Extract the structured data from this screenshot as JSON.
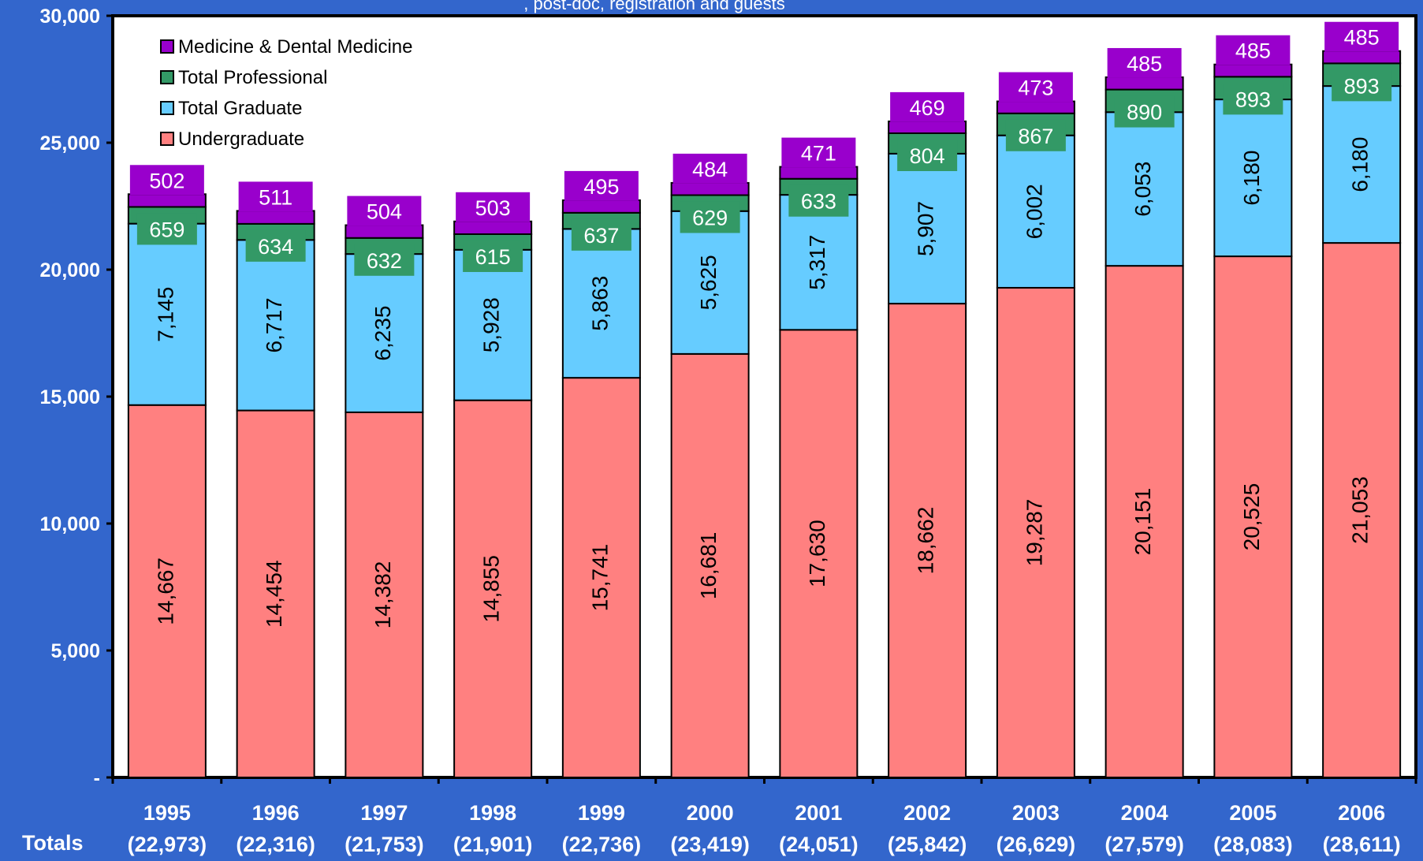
{
  "chart_data": {
    "type": "bar",
    "stacked": true,
    "title_fragment": ", post-doc, registration and guests",
    "categories": [
      "1995",
      "1996",
      "1997",
      "1998",
      "1999",
      "2000",
      "2001",
      "2002",
      "2003",
      "2004",
      "2005",
      "2006"
    ],
    "category_totals": [
      "(22,973)",
      "(22,316)",
      "(21,753)",
      "(21,901)",
      "(22,736)",
      "(23,419)",
      "(24,051)",
      "(25,842)",
      "(26,629)",
      "(27,579)",
      "(28,083)",
      "(28,611)"
    ],
    "totals_label": "Totals",
    "ylim": [
      0,
      30000
    ],
    "yticks": [
      {
        "value": 0,
        "label": "-"
      },
      {
        "value": 5000,
        "label": "5,000"
      },
      {
        "value": 10000,
        "label": "10,000"
      },
      {
        "value": 15000,
        "label": "15,000"
      },
      {
        "value": 20000,
        "label": "20,000"
      },
      {
        "value": 25000,
        "label": "25,000"
      },
      {
        "value": 30000,
        "label": "30,000"
      }
    ],
    "legend_position": "top-left",
    "series": [
      {
        "name": "Undergraduate",
        "color": "#ff8080",
        "label_color": "#ff8080",
        "values": [
          14667,
          14454,
          14382,
          14855,
          15741,
          16681,
          17630,
          18662,
          19287,
          20151,
          20525,
          21053
        ],
        "labels": [
          "14,667",
          "14,454",
          "14,382",
          "14,855",
          "15,741",
          "16,681",
          "17,630",
          "18,662",
          "19,287",
          "20,151",
          "20,525",
          "21,053"
        ]
      },
      {
        "name": "Total Graduate",
        "color": "#66ccff",
        "label_color": "#66ccff",
        "values": [
          7145,
          6717,
          6235,
          5928,
          5863,
          5625,
          5317,
          5907,
          6002,
          6053,
          6180,
          6180
        ],
        "labels": [
          "7,145",
          "6,717",
          "6,235",
          "5,928",
          "5,863",
          "5,625",
          "5,317",
          "5,907",
          "6,002",
          "6,053",
          "6,180",
          "6,180"
        ]
      },
      {
        "name": "Total Professional",
        "color": "#339966",
        "label_color": "#339966",
        "values": [
          659,
          634,
          632,
          615,
          637,
          629,
          633,
          804,
          867,
          890,
          893,
          893
        ],
        "labels": [
          "659",
          "634",
          "632",
          "615",
          "637",
          "629",
          "633",
          "804",
          "867",
          "890",
          "893",
          "893"
        ]
      },
      {
        "name": "Medicine & Dental Medicine",
        "color": "#9900cc",
        "label_color": "#9900cc",
        "values": [
          502,
          511,
          504,
          503,
          495,
          484,
          471,
          469,
          473,
          485,
          485,
          485
        ],
        "labels": [
          "502",
          "511",
          "504",
          "503",
          "495",
          "484",
          "471",
          "469",
          "473",
          "485",
          "485",
          "485"
        ]
      }
    ],
    "legend_order": [
      "Medicine & Dental Medicine",
      "Total Professional",
      "Total Graduate",
      "Undergraduate"
    ]
  },
  "colors": {
    "background": "#3366cc",
    "plot_area": "#ffffff",
    "axis": "#000000",
    "tick_text": "#ffffff"
  }
}
